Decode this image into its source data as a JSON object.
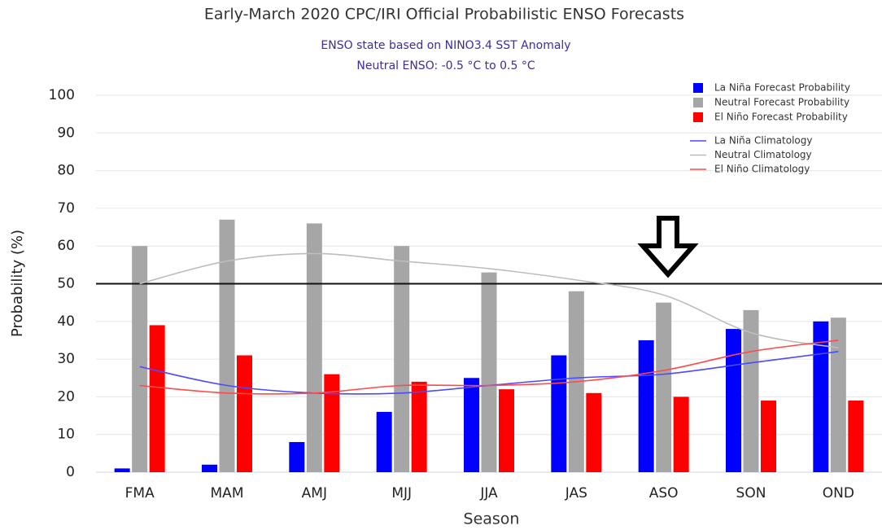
{
  "chart_data": {
    "type": "bar",
    "title": "Early-March 2020 CPC/IRI Official Probabilistic ENSO Forecasts",
    "subtitle": [
      "ENSO state based on NINO3.4 SST Anomaly",
      "Neutral ENSO: -0.5 °C to 0.5 °C"
    ],
    "x_label": "Season",
    "y_label": "Probability (%)",
    "categories": [
      "FMA",
      "MAM",
      "AMJ",
      "MJJ",
      "JJA",
      "JAS",
      "ASO",
      "SON",
      "OND"
    ],
    "series": [
      {
        "name": "La Niña Forecast Probability",
        "type": "bar",
        "color": "#0000ff",
        "values": [
          1,
          2,
          8,
          16,
          25,
          31,
          35,
          38,
          40
        ]
      },
      {
        "name": "Neutral Forecast Probability",
        "type": "bar",
        "color": "#a6a6a6",
        "values": [
          60,
          67,
          66,
          60,
          53,
          48,
          45,
          43,
          41
        ]
      },
      {
        "name": "El Niño Forecast Probability",
        "type": "bar",
        "color": "#ff0000",
        "values": [
          39,
          31,
          26,
          24,
          22,
          21,
          20,
          19,
          19
        ]
      },
      {
        "name": "La Niña Climatology",
        "type": "line",
        "color": "#4a4aff",
        "values": [
          28,
          23,
          21,
          21,
          23,
          25,
          26,
          29,
          32
        ]
      },
      {
        "name": "Neutral Climatology",
        "type": "line",
        "color": "#bdbdbd",
        "values": [
          50,
          56,
          58,
          56,
          54,
          51,
          47,
          37,
          33
        ]
      },
      {
        "name": "El Niño Climatology",
        "type": "line",
        "color": "#ff4a4a",
        "values": [
          23,
          21,
          21,
          23,
          23,
          24,
          27,
          32,
          35
        ]
      }
    ],
    "ylim": [
      0,
      100
    ],
    "yticks": [
      0,
      10,
      20,
      30,
      40,
      50,
      60,
      70,
      80,
      90,
      100
    ],
    "grid": true,
    "reference_line": 50,
    "legend": "upper right"
  }
}
